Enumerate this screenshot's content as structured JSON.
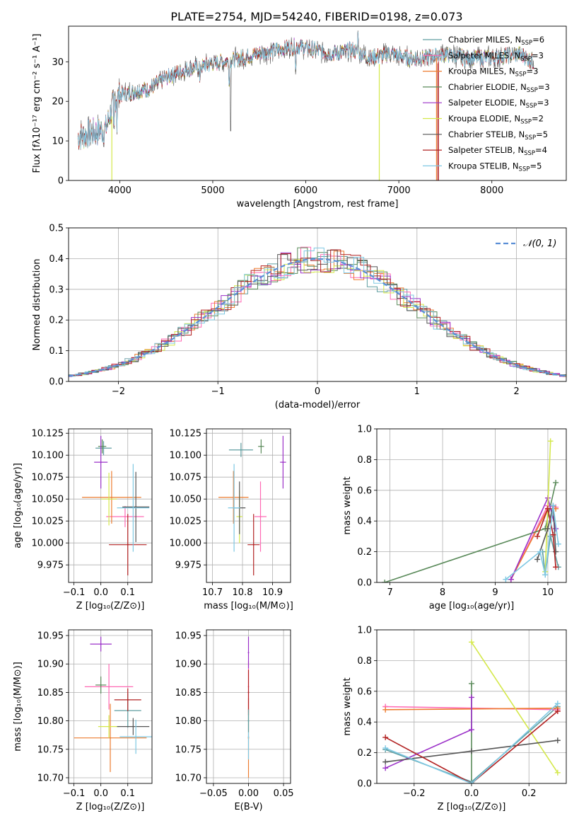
{
  "figure": {
    "title": "PLATE=2754, MJD=54240, FIBERID=0198, z=0.073"
  },
  "models": [
    {
      "name": "Chabrier MILES",
      "nssp": "6",
      "color": "#5f9ea0"
    },
    {
      "name": "Salpeter MILES",
      "nssp": "3",
      "color": "#ff69b4"
    },
    {
      "name": "Kroupa MILES",
      "nssp": "3",
      "color": "#ed7d31"
    },
    {
      "name": "Chabrier ELODIE",
      "nssp": "3",
      "color": "#5a8a5a"
    },
    {
      "name": "Salpeter ELODIE",
      "nssp": "3",
      "color": "#9b30c8"
    },
    {
      "name": "Kroupa ELODIE",
      "nssp": "2",
      "color": "#d4e84a"
    },
    {
      "name": "Chabrier STELIB",
      "nssp": "5",
      "color": "#555555"
    },
    {
      "name": "Salpeter STELIB",
      "nssp": "4",
      "color": "#b22222"
    },
    {
      "name": "Kroupa STELIB",
      "nssp": "5",
      "color": "#7ec8e3"
    }
  ],
  "chart_data": [
    {
      "id": "spectrum",
      "type": "line",
      "xlabel": "wavelength [Angstrom, rest frame]",
      "ylabel": "Flux [fλ10⁻¹⁷ erg cm⁻² s⁻¹ A⁻¹]",
      "xlim": [
        3450,
        8800
      ],
      "ylim": [
        0,
        39
      ],
      "xticks": [
        4000,
        5000,
        6000,
        7000,
        8000
      ],
      "yticks": [
        0,
        10,
        20,
        30
      ],
      "grid": false,
      "legend": "top-right",
      "continuum": {
        "x": [
          3550,
          3700,
          3850,
          3950,
          4050,
          4300,
          4500,
          4700,
          4900,
          5100,
          5300,
          5500,
          5700,
          5900,
          6100,
          6300,
          6500,
          6700,
          6900,
          7100,
          7300,
          7500,
          7700,
          8000,
          8300,
          8450
        ],
        "y": [
          11,
          12,
          13,
          21,
          22,
          23,
          26,
          28,
          29,
          30,
          31,
          32,
          33,
          34,
          33,
          32,
          33,
          31,
          32,
          31,
          31,
          32,
          31,
          31,
          32,
          30
        ]
      }
    },
    {
      "id": "residuals",
      "type": "histogram",
      "xlabel": "(data-model)/error",
      "ylabel": "Normed distribution",
      "xlim": [
        -2.5,
        2.5
      ],
      "ylim": [
        0,
        0.5
      ],
      "xticks": [
        -2,
        -1,
        0,
        1,
        2
      ],
      "yticks": [
        0.0,
        0.1,
        0.2,
        0.3,
        0.4,
        0.5
      ],
      "grid": true,
      "legend": "top-right",
      "reference_curve": "𝒩(0, 1)",
      "bin_width": 0.1
    },
    {
      "id": "age-vs-Z",
      "type": "scatter",
      "xlabel": "Z [log₁₀(Z/Z⊙)]",
      "ylabel": "age  [log₁₀(age/yr)]",
      "xlim": [
        -0.12,
        0.19
      ],
      "ylim": [
        9.955,
        10.13
      ],
      "xticks": [
        -0.1,
        0.0,
        0.1
      ],
      "yticks": [
        9.975,
        10.0,
        10.025,
        10.05,
        10.075,
        10.1,
        10.125
      ],
      "grid": true,
      "points": [
        {
          "model": 0,
          "x": 0.01,
          "y": 10.108,
          "xerr": 0.03,
          "yerr": 0.008
        },
        {
          "model": 1,
          "x": 0.09,
          "y": 10.03,
          "xerr": 0.07,
          "yerr": 0.012
        },
        {
          "model": 2,
          "x": 0.04,
          "y": 10.052,
          "xerr": 0.11,
          "yerr": 0.03
        },
        {
          "model": 3,
          "x": 0.005,
          "y": 10.11,
          "xerr": 0.015,
          "yerr": 0.008
        },
        {
          "model": 4,
          "x": 0.0,
          "y": 10.092,
          "xerr": 0.025,
          "yerr": 0.03
        },
        {
          "model": 5,
          "x": 0.03,
          "y": 10.05,
          "xerr": 0.03,
          "yerr": 0.03
        },
        {
          "model": 6,
          "x": 0.13,
          "y": 10.041,
          "xerr": 0.05,
          "yerr": 0.04
        },
        {
          "model": 7,
          "x": 0.1,
          "y": 9.998,
          "xerr": 0.07,
          "yerr": 0.035
        },
        {
          "model": 8,
          "x": 0.12,
          "y": 10.04,
          "xerr": 0.06,
          "yerr": 0.05
        }
      ]
    },
    {
      "id": "age-vs-mass",
      "type": "scatter",
      "xlabel": "mass [log₁₀(M/M⊙)]",
      "ylabel": "",
      "xlim": [
        10.68,
        10.96
      ],
      "ylim": [
        9.955,
        10.13
      ],
      "xticks": [
        10.7,
        10.8,
        10.9
      ],
      "yticks": [
        9.975,
        10.0,
        10.025,
        10.05,
        10.075,
        10.1,
        10.125
      ],
      "grid": true,
      "points": [
        {
          "model": 0,
          "x": 10.795,
          "y": 10.106,
          "xerr": 0.04,
          "yerr": 0.008
        },
        {
          "model": 1,
          "x": 10.86,
          "y": 10.03,
          "xerr": 0.02,
          "yerr": 0.04
        },
        {
          "model": 2,
          "x": 10.77,
          "y": 10.052,
          "xerr": 0.05,
          "yerr": 0.03
        },
        {
          "model": 3,
          "x": 10.862,
          "y": 10.11,
          "xerr": 0.01,
          "yerr": 0.008
        },
        {
          "model": 4,
          "x": 10.935,
          "y": 10.092,
          "xerr": 0.01,
          "yerr": 0.03
        },
        {
          "model": 5,
          "x": 10.79,
          "y": 10.03,
          "xerr": 0.01,
          "yerr": 0.03
        },
        {
          "model": 6,
          "x": 10.79,
          "y": 10.04,
          "xerr": 0.02,
          "yerr": 0.03
        },
        {
          "model": 7,
          "x": 10.837,
          "y": 9.998,
          "xerr": 0.02,
          "yerr": 0.035
        },
        {
          "model": 8,
          "x": 10.772,
          "y": 10.04,
          "xerr": 0.02,
          "yerr": 0.05
        }
      ]
    },
    {
      "id": "weight-vs-age",
      "type": "line",
      "xlabel": "age  [log₁₀(age/yr)]",
      "ylabel": "mass weight",
      "xlim": [
        6.75,
        10.35
      ],
      "ylim": [
        0,
        1
      ],
      "xticks": [
        7,
        8,
        9,
        10
      ],
      "yticks": [
        0.0,
        0.2,
        0.4,
        0.6,
        0.8,
        1.0
      ],
      "grid": true,
      "series": [
        {
          "model": 0,
          "x": [
            9.9,
            9.95,
            10.05,
            10.2
          ],
          "y": [
            0.2,
            0.05,
            0.3,
            0.1
          ]
        },
        {
          "model": 1,
          "x": [
            9.3,
            10.0,
            10.15
          ],
          "y": [
            0.02,
            0.5,
            0.49
          ]
        },
        {
          "model": 2,
          "x": [
            9.3,
            10.0,
            10.15
          ],
          "y": [
            0.02,
            0.48,
            0.48
          ]
        },
        {
          "model": 3,
          "x": [
            6.9,
            9.95,
            10.15
          ],
          "y": [
            0.0,
            0.35,
            0.65
          ]
        },
        {
          "model": 4,
          "x": [
            9.3,
            10.0,
            10.15
          ],
          "y": [
            0.02,
            0.55,
            0.35
          ]
        },
        {
          "model": 5,
          "x": [
            9.95,
            10.05
          ],
          "y": [
            0.07,
            0.92
          ]
        },
        {
          "model": 6,
          "x": [
            9.8,
            10.0,
            10.1,
            10.15
          ],
          "y": [
            0.15,
            0.35,
            0.5,
            0.2
          ]
        },
        {
          "model": 7,
          "x": [
            9.8,
            10.0,
            10.1,
            10.15
          ],
          "y": [
            0.3,
            0.48,
            0.31,
            0.1
          ]
        },
        {
          "model": 8,
          "x": [
            9.2,
            9.85,
            9.95,
            10.1,
            10.2
          ],
          "y": [
            0.02,
            0.2,
            0.05,
            0.5,
            0.25
          ]
        }
      ]
    },
    {
      "id": "mass-vs-Z",
      "type": "scatter",
      "xlabel": "Z [log₁₀(Z/Z⊙)]",
      "ylabel": "mass [log₁₀(M/M⊙)]",
      "xlim": [
        -0.12,
        0.19
      ],
      "ylim": [
        10.69,
        10.96
      ],
      "xticks": [
        -0.1,
        0.0,
        0.1
      ],
      "yticks": [
        10.7,
        10.75,
        10.8,
        10.85,
        10.9,
        10.95
      ],
      "grid": true,
      "points": [
        {
          "model": 0,
          "x": 0.1,
          "y": 10.818,
          "xerr": 0.05,
          "yerr": 0.03
        },
        {
          "model": 1,
          "x": 0.03,
          "y": 10.86,
          "xerr": 0.09,
          "yerr": 0.04
        },
        {
          "model": 2,
          "x": 0.035,
          "y": 10.77,
          "xerr": 0.135,
          "yerr": 0.06
        },
        {
          "model": 3,
          "x": 0.0,
          "y": 10.863,
          "xerr": 0.02,
          "yerr": 0.015
        },
        {
          "model": 4,
          "x": 0.0,
          "y": 10.935,
          "xerr": 0.04,
          "yerr": 0.013
        },
        {
          "model": 5,
          "x": 0.03,
          "y": 10.79,
          "xerr": 0.04,
          "yerr": 0.02
        },
        {
          "model": 6,
          "x": 0.12,
          "y": 10.79,
          "xerr": 0.06,
          "yerr": 0.015
        },
        {
          "model": 7,
          "x": 0.1,
          "y": 10.837,
          "xerr": 0.05,
          "yerr": 0.02
        },
        {
          "model": 8,
          "x": 0.13,
          "y": 10.772,
          "xerr": 0.06,
          "yerr": 0.03
        }
      ]
    },
    {
      "id": "mass-vs-ebv",
      "type": "scatter",
      "xlabel": "E(B-V)",
      "ylabel": "",
      "xlim": [
        -0.06,
        0.06
      ],
      "ylim": [
        10.69,
        10.96
      ],
      "xticks": [
        -0.05,
        0.0,
        0.05
      ],
      "yticks": [
        10.7,
        10.75,
        10.8,
        10.85,
        10.9,
        10.95
      ],
      "grid": true,
      "points": [
        {
          "model": 2,
          "x": 0.0,
          "y": 10.77,
          "yerr": 0.07
        },
        {
          "model": 1,
          "x": 0.0,
          "y": 10.86,
          "yerr": 0.045
        },
        {
          "model": 4,
          "x": 0.0,
          "y": 10.92,
          "yerr": 0.028
        },
        {
          "model": 7,
          "x": 0.0,
          "y": 10.85,
          "yerr": 0.04
        },
        {
          "model": 8,
          "x": 0.0,
          "y": 10.772,
          "yerr": 0.04
        },
        {
          "model": 0,
          "x": 0.0,
          "y": 10.8,
          "yerr": 0.02
        }
      ]
    },
    {
      "id": "weight-vs-Z",
      "type": "line",
      "xlabel": "Z [log₁₀(Z/Z⊙)]",
      "ylabel": "mass weight",
      "xlim": [
        -0.33,
        0.33
      ],
      "ylim": [
        0,
        1
      ],
      "xticks": [
        -0.2,
        0.0,
        0.2
      ],
      "yticks": [
        0.0,
        0.2,
        0.4,
        0.6,
        0.8,
        1.0
      ],
      "grid": true,
      "series": [
        {
          "model": 0,
          "x": [
            -0.3,
            0.0,
            0.3
          ],
          "y": [
            0.22,
            0.01,
            0.5
          ]
        },
        {
          "model": 1,
          "x": [
            -0.3,
            0.3
          ],
          "y": [
            0.5,
            0.48
          ]
        },
        {
          "model": 2,
          "x": [
            -0.3,
            0.3
          ],
          "y": [
            0.48,
            0.49
          ]
        },
        {
          "model": 3,
          "x": [
            0.0,
            0.0
          ],
          "y": [
            0.0,
            0.65
          ]
        },
        {
          "model": 4,
          "x": [
            -0.3,
            0.0,
            0.0
          ],
          "y": [
            0.1,
            0.35,
            0.56
          ]
        },
        {
          "model": 5,
          "x": [
            0.0,
            0.3
          ],
          "y": [
            0.92,
            0.07
          ]
        },
        {
          "model": 6,
          "x": [
            -0.3,
            0.0,
            0.3
          ],
          "y": [
            0.14,
            0.21,
            0.28
          ]
        },
        {
          "model": 7,
          "x": [
            -0.3,
            0.0,
            0.3
          ],
          "y": [
            0.3,
            0.0,
            0.47
          ]
        },
        {
          "model": 8,
          "x": [
            -0.3,
            0.0,
            0.3
          ],
          "y": [
            0.23,
            0.0,
            0.52
          ]
        }
      ]
    }
  ]
}
